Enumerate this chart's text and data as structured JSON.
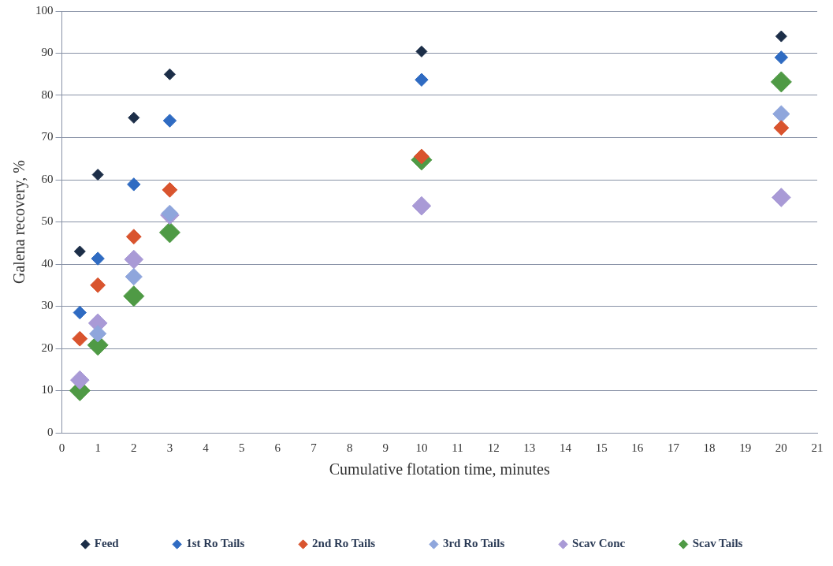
{
  "chart_data": {
    "type": "scatter",
    "xlabel": "Cumulative flotation time, minutes",
    "ylabel": "Galena recovery, %",
    "x": [
      0.5,
      1,
      2,
      3,
      10,
      20
    ],
    "series": [
      {
        "name": "Feed",
        "color": "#1c2e48",
        "values": [
          43,
          61.2,
          74.7,
          85,
          90.4,
          94
        ]
      },
      {
        "name": "1st Ro Tails",
        "color": "#2f6bc2",
        "values": [
          28.5,
          41.3,
          58.9,
          74,
          83.7,
          89
        ]
      },
      {
        "name": "2nd Ro Tails",
        "color": "#d9542e",
        "values": [
          22.3,
          35,
          46.5,
          57.6,
          65.5,
          72.3
        ]
      },
      {
        "name": "3rd Ro Tails",
        "color": "#8fa6dc",
        "values": [
          null,
          23.5,
          37,
          52,
          null,
          75.6
        ]
      },
      {
        "name": "Scav Conc",
        "color": "#a99ad6",
        "values": [
          12.5,
          26,
          41.1,
          51.6,
          53.8,
          55.8
        ]
      },
      {
        "name": "Scav Tails",
        "color": "#4f9a45",
        "values": [
          10,
          20.8,
          32.4,
          47.5,
          64.7,
          83.2
        ]
      }
    ],
    "xlim": [
      0,
      21
    ],
    "xticks": [
      0,
      1,
      2,
      3,
      4,
      5,
      6,
      7,
      8,
      9,
      10,
      11,
      12,
      13,
      14,
      15,
      16,
      17,
      18,
      19,
      20,
      21
    ],
    "ylim": [
      0,
      100
    ],
    "yticks": [
      0,
      10,
      20,
      30,
      40,
      50,
      60,
      70,
      80,
      90,
      100
    ],
    "grid": "y",
    "legend": "bottom",
    "marker": "diamond"
  }
}
